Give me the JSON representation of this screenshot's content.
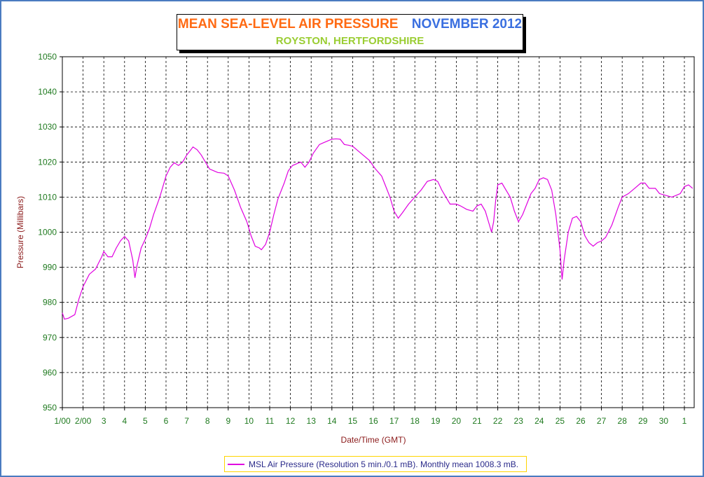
{
  "title": {
    "main": "MEAN SEA-LEVEL AIR PRESSURE",
    "date": "NOVEMBER 2012",
    "location": "ROYSTON, HERTFORDSHIRE"
  },
  "colors": {
    "series": "#e000e0",
    "tick_labels": "#1f7a1f",
    "axis_titles": "#8b1a1a",
    "title_main": "#ff6a13",
    "title_date": "#3a6fe0",
    "title_location": "#9acd32",
    "frame": "#4a7bc0",
    "legend_border": "#ffd400"
  },
  "chart_data": {
    "type": "line",
    "xlabel": "Date/Time (GMT)",
    "ylabel": "Pressure (Millibars)",
    "ylim": [
      950,
      1050
    ],
    "yticks": [
      950,
      960,
      970,
      980,
      990,
      1000,
      1010,
      1020,
      1030,
      1040,
      1050
    ],
    "xlim": [
      1,
      31
    ],
    "xticks": [
      {
        "x": 1,
        "label": "1/00"
      },
      {
        "x": 2,
        "label": "2/00"
      },
      {
        "x": 3,
        "label": "3"
      },
      {
        "x": 4,
        "label": "4"
      },
      {
        "x": 5,
        "label": "5"
      },
      {
        "x": 6,
        "label": "6"
      },
      {
        "x": 7,
        "label": "7"
      },
      {
        "x": 8,
        "label": "8"
      },
      {
        "x": 9,
        "label": "9"
      },
      {
        "x": 10,
        "label": "10"
      },
      {
        "x": 11,
        "label": "11"
      },
      {
        "x": 12,
        "label": "12"
      },
      {
        "x": 13,
        "label": "13"
      },
      {
        "x": 14,
        "label": "14"
      },
      {
        "x": 15,
        "label": "15"
      },
      {
        "x": 16,
        "label": "16"
      },
      {
        "x": 17,
        "label": "17"
      },
      {
        "x": 18,
        "label": "18"
      },
      {
        "x": 19,
        "label": "19"
      },
      {
        "x": 20,
        "label": "20"
      },
      {
        "x": 21,
        "label": "21"
      },
      {
        "x": 22,
        "label": "22"
      },
      {
        "x": 23,
        "label": "23"
      },
      {
        "x": 24,
        "label": "24"
      },
      {
        "x": 25,
        "label": "25"
      },
      {
        "x": 26,
        "label": "26"
      },
      {
        "x": 27,
        "label": "27"
      },
      {
        "x": 28,
        "label": "28"
      },
      {
        "x": 29,
        "label": "29"
      },
      {
        "x": 30,
        "label": "30"
      },
      {
        "x": 31,
        "label": "1"
      }
    ],
    "grid": true,
    "legend_position": "bottom-center",
    "series": [
      {
        "name": "MSL Air Pressure (Resolution 5 min./0.1 mB). Monthly mean 1008.3 mB.",
        "points": [
          [
            1.0,
            977
          ],
          [
            1.1,
            975.2
          ],
          [
            1.3,
            975.5
          ],
          [
            1.6,
            976.5
          ],
          [
            1.8,
            981
          ],
          [
            2.0,
            984.5
          ],
          [
            2.3,
            988
          ],
          [
            2.6,
            989.5
          ],
          [
            2.9,
            993
          ],
          [
            3.0,
            994.5
          ],
          [
            3.2,
            993
          ],
          [
            3.4,
            993
          ],
          [
            3.6,
            995.5
          ],
          [
            3.8,
            997.5
          ],
          [
            4.0,
            998.8
          ],
          [
            4.2,
            997.5
          ],
          [
            4.4,
            992
          ],
          [
            4.5,
            987
          ],
          [
            4.6,
            990.5
          ],
          [
            4.8,
            995.5
          ],
          [
            5.0,
            998
          ],
          [
            5.2,
            1001
          ],
          [
            5.4,
            1005
          ],
          [
            5.7,
            1010
          ],
          [
            6.0,
            1016
          ],
          [
            6.2,
            1018.5
          ],
          [
            6.4,
            1019.8
          ],
          [
            6.6,
            1019
          ],
          [
            6.8,
            1020
          ],
          [
            7.0,
            1022
          ],
          [
            7.2,
            1023.5
          ],
          [
            7.3,
            1024.3
          ],
          [
            7.5,
            1023.5
          ],
          [
            7.7,
            1022
          ],
          [
            7.9,
            1020
          ],
          [
            8.1,
            1018
          ],
          [
            8.3,
            1017.5
          ],
          [
            8.5,
            1017
          ],
          [
            8.8,
            1016.8
          ],
          [
            9.0,
            1016
          ],
          [
            9.3,
            1012
          ],
          [
            9.6,
            1007
          ],
          [
            9.9,
            1003
          ],
          [
            10.1,
            999
          ],
          [
            10.3,
            996
          ],
          [
            10.5,
            995.5
          ],
          [
            10.6,
            995
          ],
          [
            10.8,
            996.5
          ],
          [
            11.0,
            1000
          ],
          [
            11.2,
            1005
          ],
          [
            11.4,
            1009.5
          ],
          [
            11.7,
            1014
          ],
          [
            11.9,
            1017.5
          ],
          [
            12.1,
            1019
          ],
          [
            12.3,
            1019.5
          ],
          [
            12.5,
            1020
          ],
          [
            12.7,
            1018.5
          ],
          [
            12.9,
            1020
          ],
          [
            13.1,
            1022.5
          ],
          [
            13.4,
            1025
          ],
          [
            13.6,
            1025.5
          ],
          [
            13.8,
            1026
          ],
          [
            14.0,
            1026.5
          ],
          [
            14.2,
            1026.6
          ],
          [
            14.4,
            1026.5
          ],
          [
            14.6,
            1025
          ],
          [
            14.8,
            1024.8
          ],
          [
            15.0,
            1024.5
          ],
          [
            15.2,
            1023.5
          ],
          [
            15.5,
            1022
          ],
          [
            15.8,
            1020.5
          ],
          [
            16.1,
            1018
          ],
          [
            16.4,
            1016
          ],
          [
            16.6,
            1013
          ],
          [
            16.8,
            1010
          ],
          [
            17.0,
            1006
          ],
          [
            17.2,
            1004
          ],
          [
            17.4,
            1005.5
          ],
          [
            17.7,
            1008
          ],
          [
            18.0,
            1010
          ],
          [
            18.3,
            1012
          ],
          [
            18.6,
            1014.5
          ],
          [
            18.9,
            1015
          ],
          [
            19.1,
            1014.5
          ],
          [
            19.3,
            1012
          ],
          [
            19.5,
            1010
          ],
          [
            19.7,
            1008
          ],
          [
            20.0,
            1008
          ],
          [
            20.2,
            1007.5
          ],
          [
            20.5,
            1006.5
          ],
          [
            20.8,
            1006
          ],
          [
            21.0,
            1007.5
          ],
          [
            21.2,
            1008
          ],
          [
            21.4,
            1006
          ],
          [
            21.6,
            1002
          ],
          [
            21.7,
            1000
          ],
          [
            21.8,
            1003
          ],
          [
            21.9,
            1009
          ],
          [
            22.0,
            1013.5
          ],
          [
            22.2,
            1014
          ],
          [
            22.4,
            1012
          ],
          [
            22.6,
            1010
          ],
          [
            22.8,
            1006
          ],
          [
            23.0,
            1003
          ],
          [
            23.2,
            1005
          ],
          [
            23.4,
            1008
          ],
          [
            23.6,
            1011
          ],
          [
            23.8,
            1012.5
          ],
          [
            24.0,
            1015
          ],
          [
            24.2,
            1015.5
          ],
          [
            24.4,
            1015
          ],
          [
            24.6,
            1012
          ],
          [
            24.8,
            1005
          ],
          [
            25.0,
            995
          ],
          [
            25.1,
            986.5
          ],
          [
            25.2,
            992
          ],
          [
            25.4,
            1000
          ],
          [
            25.6,
            1004
          ],
          [
            25.8,
            1004.5
          ],
          [
            26.0,
            1003
          ],
          [
            26.2,
            999
          ],
          [
            26.4,
            997
          ],
          [
            26.6,
            996
          ],
          [
            26.8,
            997
          ],
          [
            27.0,
            997.5
          ],
          [
            27.2,
            998.5
          ],
          [
            27.5,
            1002
          ],
          [
            27.8,
            1007
          ],
          [
            28.0,
            1010
          ],
          [
            28.3,
            1011
          ],
          [
            28.6,
            1012.5
          ],
          [
            28.9,
            1014
          ],
          [
            29.1,
            1014
          ],
          [
            29.3,
            1012.5
          ],
          [
            29.6,
            1012.5
          ],
          [
            29.8,
            1011
          ],
          [
            30.1,
            1010.5
          ],
          [
            30.4,
            1010
          ],
          [
            30.6,
            1010.5
          ],
          [
            30.8,
            1011
          ],
          [
            31.0,
            1013
          ],
          [
            31.2,
            1013.5
          ],
          [
            31.4,
            1012.5
          ]
        ]
      }
    ]
  }
}
